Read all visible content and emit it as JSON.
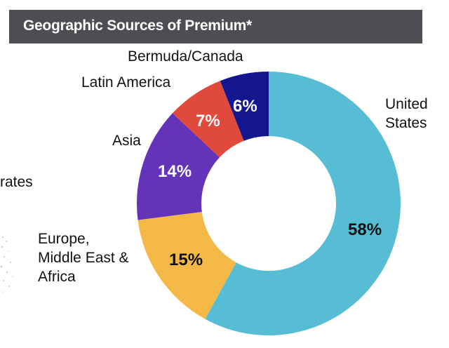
{
  "header": {
    "title": "Geographic Sources of Premium*"
  },
  "side_fragment": {
    "text": "rates"
  },
  "chart_data": {
    "type": "pie",
    "subtype": "donut",
    "title": "Geographic Sources of Premium*",
    "categories": [
      "United States",
      "Europe, Middle East & Africa",
      "Asia",
      "Latin America",
      "Bermuda/Canada"
    ],
    "values": [
      58,
      15,
      14,
      7,
      6
    ],
    "unit": "%",
    "colors": [
      "#56bdd4",
      "#f4b847",
      "#6333b8",
      "#e04a3a",
      "#13168e"
    ],
    "start_angle": "12 o'clock",
    "direction": "clockwise",
    "legend": "direct labels outside slices"
  },
  "slices": [
    {
      "label_lines": [
        "United",
        "States"
      ],
      "pct": "58%",
      "color": "#56bdd4",
      "pct_color": "#111111"
    },
    {
      "label_lines": [
        "Europe,",
        "Middle East &",
        "Africa"
      ],
      "pct": "15%",
      "color": "#f4b847",
      "pct_color": "#111111"
    },
    {
      "label_lines": [
        "Asia"
      ],
      "pct": "14%",
      "color": "#6333b8",
      "pct_color": "#ffffff"
    },
    {
      "label_lines": [
        "Latin America"
      ],
      "pct": "7%",
      "color": "#e04a3a",
      "pct_color": "#ffffff"
    },
    {
      "label_lines": [
        "Bermuda/Canada"
      ],
      "pct": "6%",
      "color": "#13168e",
      "pct_color": "#ffffff"
    }
  ]
}
